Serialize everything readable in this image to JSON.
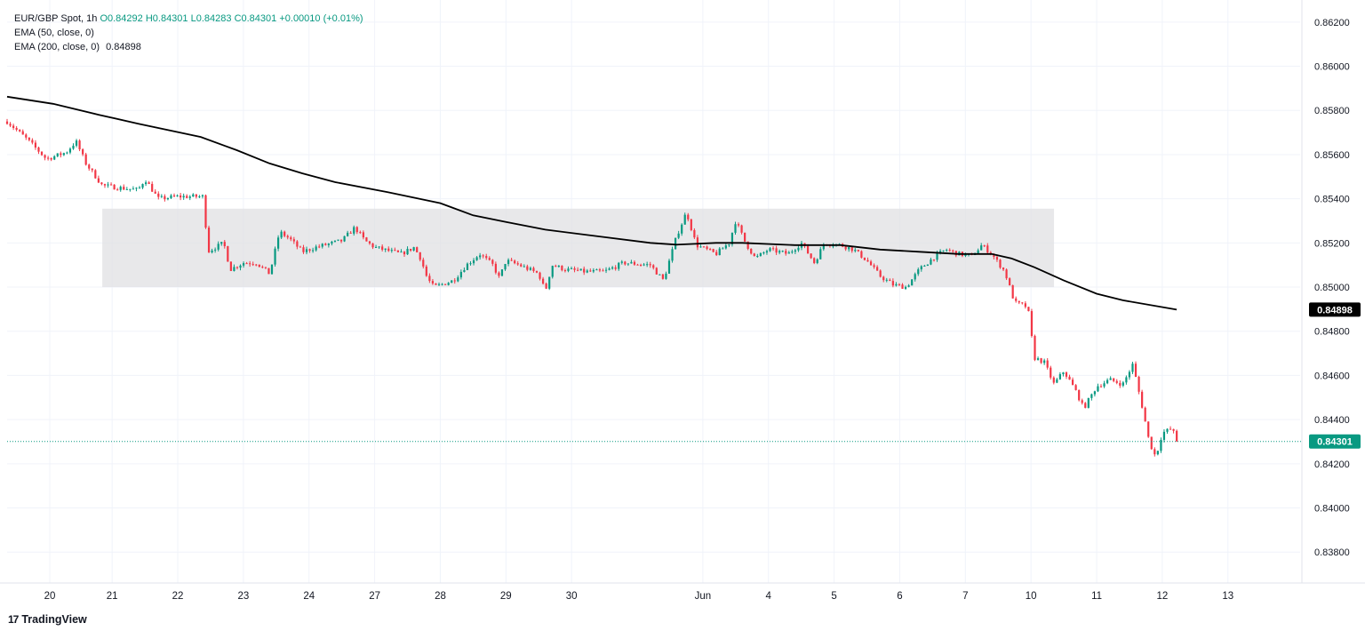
{
  "legend": {
    "symbol": "EUR/GBP Spot",
    "interval": "1h",
    "open": "O0.84292",
    "high": "H0.84301",
    "low": "L0.84283",
    "close": "C0.84301",
    "change": "+0.00010 (+0.01%)",
    "ema50_label": "EMA (50, close, 0)",
    "ema200_label": "EMA (200, close, 0)",
    "ema200_value": "0.84898"
  },
  "branding": {
    "name": "TradingView",
    "mark": "17"
  },
  "colors": {
    "up": "#089981",
    "down": "#f23645",
    "ema": "#000000",
    "zone": "#e0e0e3",
    "grid": "#f0f3fa",
    "last_price": "#089981"
  },
  "chart_data": {
    "type": "candlestick",
    "symbol": "EUR/GBP Spot",
    "interval": "1h",
    "ylim": [
      0.8366,
      0.863
    ],
    "y_ticks": [
      "0.86200",
      "0.86000",
      "0.85800",
      "0.85600",
      "0.85400",
      "0.85200",
      "0.85000",
      "0.84800",
      "0.84600",
      "0.84400",
      "0.84200",
      "0.84000",
      "0.83800"
    ],
    "x_ticks": [
      {
        "label": "20",
        "t": 0.65
      },
      {
        "label": "21",
        "t": 1.6
      },
      {
        "label": "22",
        "t": 2.6
      },
      {
        "label": "23",
        "t": 3.6
      },
      {
        "label": "24",
        "t": 4.6
      },
      {
        "label": "27",
        "t": 5.6
      },
      {
        "label": "28",
        "t": 6.6
      },
      {
        "label": "29",
        "t": 7.6
      },
      {
        "label": "30",
        "t": 8.6
      },
      {
        "label": "Jun",
        "t": 10.6
      },
      {
        "label": "4",
        "t": 11.6
      },
      {
        "label": "5",
        "t": 12.6
      },
      {
        "label": "6",
        "t": 13.6
      },
      {
        "label": "7",
        "t": 14.6
      },
      {
        "label": "10",
        "t": 15.6
      },
      {
        "label": "11",
        "t": 16.6
      },
      {
        "label": "12",
        "t": 17.6
      },
      {
        "label": "13",
        "t": 18.6
      }
    ],
    "x_range": [
      0,
      19.7
    ],
    "path_points": [
      [
        0.0,
        0.8575
      ],
      [
        0.3,
        0.8567
      ],
      [
        0.6,
        0.8558
      ],
      [
        0.9,
        0.8561
      ],
      [
        1.05,
        0.8566
      ],
      [
        1.2,
        0.8556
      ],
      [
        1.45,
        0.8546
      ],
      [
        1.7,
        0.8545
      ],
      [
        2.0,
        0.8544
      ],
      [
        2.1,
        0.8549
      ],
      [
        2.3,
        0.854
      ],
      [
        2.6,
        0.8541
      ],
      [
        3.0,
        0.8541
      ],
      [
        3.05,
        0.8516
      ],
      [
        3.3,
        0.852
      ],
      [
        3.4,
        0.8508
      ],
      [
        3.6,
        0.8511
      ],
      [
        3.8,
        0.8511
      ],
      [
        4.0,
        0.8506
      ],
      [
        4.15,
        0.8525
      ],
      [
        4.3,
        0.8522
      ],
      [
        4.5,
        0.8516
      ],
      [
        4.7,
        0.8518
      ],
      [
        5.1,
        0.8521
      ],
      [
        5.3,
        0.8527
      ],
      [
        5.45,
        0.8521
      ],
      [
        5.6,
        0.8518
      ],
      [
        6.0,
        0.8515
      ],
      [
        6.2,
        0.8518
      ],
      [
        6.3,
        0.8513
      ],
      [
        6.4,
        0.8504
      ],
      [
        6.5,
        0.85
      ],
      [
        6.8,
        0.8503
      ],
      [
        7.0,
        0.851
      ],
      [
        7.2,
        0.8515
      ],
      [
        7.4,
        0.851
      ],
      [
        7.5,
        0.8504
      ],
      [
        7.6,
        0.8512
      ],
      [
        7.8,
        0.851
      ],
      [
        8.1,
        0.8506
      ],
      [
        8.2,
        0.8498
      ],
      [
        8.3,
        0.851
      ],
      [
        8.5,
        0.8508
      ],
      [
        8.8,
        0.8507
      ],
      [
        9.1,
        0.8507
      ],
      [
        9.4,
        0.8511
      ],
      [
        9.8,
        0.851
      ],
      [
        10.0,
        0.8503
      ],
      [
        10.2,
        0.8523
      ],
      [
        10.35,
        0.8534
      ],
      [
        10.5,
        0.8519
      ],
      [
        10.8,
        0.8515
      ],
      [
        11.0,
        0.852
      ],
      [
        11.1,
        0.853
      ],
      [
        11.25,
        0.852
      ],
      [
        11.4,
        0.8513
      ],
      [
        11.6,
        0.8517
      ],
      [
        11.9,
        0.8515
      ],
      [
        12.1,
        0.852
      ],
      [
        12.3,
        0.8511
      ],
      [
        12.45,
        0.852
      ],
      [
        12.7,
        0.8519
      ],
      [
        12.9,
        0.8517
      ],
      [
        13.1,
        0.8512
      ],
      [
        13.3,
        0.8505
      ],
      [
        13.5,
        0.8501
      ],
      [
        13.7,
        0.85
      ],
      [
        13.9,
        0.8508
      ],
      [
        14.1,
        0.8513
      ],
      [
        14.3,
        0.8517
      ],
      [
        14.5,
        0.8515
      ],
      [
        14.7,
        0.8514
      ],
      [
        14.85,
        0.8519
      ],
      [
        15.0,
        0.8515
      ],
      [
        15.2,
        0.8507
      ],
      [
        15.35,
        0.8493
      ],
      [
        15.55,
        0.8491
      ],
      [
        15.65,
        0.8468
      ],
      [
        15.8,
        0.8466
      ],
      [
        15.95,
        0.8456
      ],
      [
        16.1,
        0.8462
      ],
      [
        16.3,
        0.8452
      ],
      [
        16.4,
        0.8445
      ],
      [
        16.6,
        0.8455
      ],
      [
        16.8,
        0.8458
      ],
      [
        17.0,
        0.8456
      ],
      [
        17.15,
        0.8465
      ],
      [
        17.3,
        0.8445
      ],
      [
        17.4,
        0.843
      ],
      [
        17.5,
        0.8423
      ],
      [
        17.6,
        0.8434
      ],
      [
        17.75,
        0.8436
      ],
      [
        17.82,
        0.843
      ]
    ],
    "ema200": [
      [
        0.0,
        0.85862
      ],
      [
        0.7,
        0.8583
      ],
      [
        1.4,
        0.8578
      ],
      [
        2.0,
        0.8574
      ],
      [
        2.95,
        0.8568
      ],
      [
        3.5,
        0.8562
      ],
      [
        4.0,
        0.8556
      ],
      [
        4.5,
        0.85515
      ],
      [
        5.0,
        0.85475
      ],
      [
        5.8,
        0.8543
      ],
      [
        6.6,
        0.8538
      ],
      [
        7.1,
        0.85325
      ],
      [
        7.6,
        0.85295
      ],
      [
        8.2,
        0.8526
      ],
      [
        9.0,
        0.8523
      ],
      [
        9.8,
        0.852
      ],
      [
        10.2,
        0.85192
      ],
      [
        10.8,
        0.852
      ],
      [
        11.2,
        0.852
      ],
      [
        12.0,
        0.8519
      ],
      [
        12.7,
        0.8519
      ],
      [
        13.3,
        0.8517
      ],
      [
        13.9,
        0.8516
      ],
      [
        14.5,
        0.8515
      ],
      [
        15.0,
        0.8515
      ],
      [
        15.3,
        0.8513
      ],
      [
        15.65,
        0.8509
      ],
      [
        16.1,
        0.8503
      ],
      [
        16.6,
        0.8497
      ],
      [
        17.0,
        0.8494
      ],
      [
        17.82,
        0.84898
      ]
    ],
    "ema200_last": 0.84898,
    "last_price": 0.84301,
    "consolidation_zone": {
      "x": [
        1.45,
        15.95
      ],
      "y": [
        0.85,
        0.85355
      ]
    }
  }
}
